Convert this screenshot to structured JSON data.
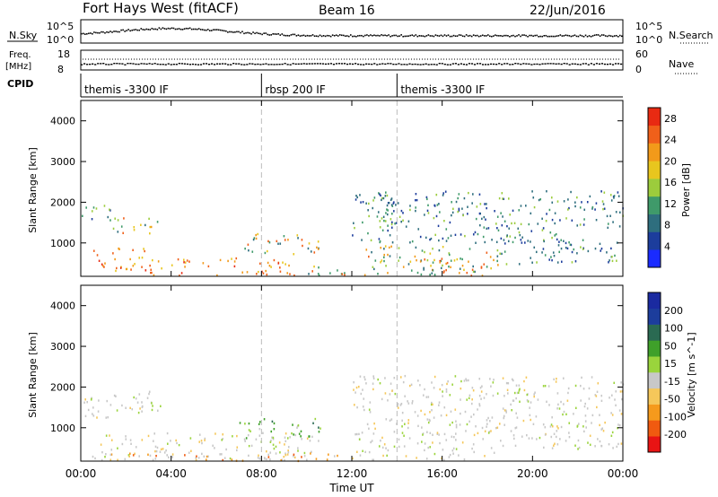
{
  "header": {
    "title": "Fort Hays West (fitACF)",
    "beam": "Beam 16",
    "date": "22/Jun/2016"
  },
  "sky_panel": {
    "left_label": "N.Sky",
    "right_label": "N.Search",
    "left_ticks": [
      "10^5",
      "10^0"
    ],
    "right_ticks": [
      "10^5",
      "10^0"
    ]
  },
  "freq_panel": {
    "left_label_line1": "Freq.",
    "left_label_line2": "[MHz]",
    "left_ticks": [
      "18",
      "8"
    ],
    "right_ticks": [
      "60",
      "0"
    ],
    "right_label": "Nave"
  },
  "cpid": {
    "label": "CPID",
    "segments": [
      {
        "start_hour": 0,
        "end_hour": 8,
        "text": "themis -3300 IF"
      },
      {
        "start_hour": 8,
        "end_hour": 14,
        "text": "rbsp 200 IF"
      },
      {
        "start_hour": 14,
        "end_hour": 24,
        "text": "themis -3300 IF"
      }
    ]
  },
  "colors": {
    "power_scale": [
      "#1a2bff",
      "#1c3d9c",
      "#2e6e7e",
      "#3f9a6a",
      "#9ccc3c",
      "#e8c61e",
      "#f29a1a",
      "#f0601a",
      "#e82a12"
    ],
    "velocity_scale": [
      "#e81414",
      "#f05a10",
      "#f59a1c",
      "#f5c75a",
      "#c8c8c8",
      "#9ad43c",
      "#3fa02a",
      "#2a6a52",
      "#1c3d9c",
      "#1a2aa0"
    ]
  },
  "chart_data": [
    {
      "type": "heatmap",
      "title": "",
      "quantity": "Power",
      "colorbar_label": "Power [dB]",
      "colorbar_ticks": [
        "4",
        "8",
        "12",
        "16",
        "20",
        "24",
        "28"
      ],
      "colorbar_range": [
        0,
        30
      ],
      "xlabel": "",
      "ylabel": "Slant Range [km]",
      "xlim": [
        0,
        24
      ],
      "ylim": [
        180,
        4500
      ],
      "ytick_labels": [
        "1000",
        "2000",
        "3000",
        "4000"
      ],
      "ytick_values": [
        1000,
        2000,
        3000,
        4000
      ],
      "regions": [
        {
          "t0": 0.0,
          "t1": 1.6,
          "r0": 1550,
          "r1": 1950,
          "level": "low"
        },
        {
          "t0": 1.2,
          "t1": 3.5,
          "r0": 1250,
          "r1": 1650,
          "level": "mid"
        },
        {
          "t0": 0.4,
          "t1": 3.0,
          "r0": 300,
          "r1": 900,
          "level": "high"
        },
        {
          "t0": 3.0,
          "t1": 9.5,
          "r0": 220,
          "r1": 650,
          "level": "high"
        },
        {
          "t0": 7.0,
          "t1": 10.6,
          "r0": 750,
          "r1": 1250,
          "level": "mid"
        },
        {
          "t0": 10.0,
          "t1": 18.5,
          "r0": 220,
          "r1": 450,
          "level": "mid"
        },
        {
          "t0": 12.5,
          "t1": 18.5,
          "r0": 400,
          "r1": 950,
          "level": "mid"
        },
        {
          "t0": 15.8,
          "t1": 18.2,
          "r0": 280,
          "r1": 650,
          "level": "high"
        },
        {
          "t0": 12.0,
          "t1": 14.0,
          "r0": 1000,
          "r1": 2300,
          "level": "low"
        },
        {
          "t0": 13.2,
          "t1": 24.0,
          "r0": 1400,
          "r1": 2300,
          "level": "low"
        },
        {
          "t0": 14.0,
          "t1": 21.5,
          "r0": 1000,
          "r1": 1400,
          "level": "low"
        },
        {
          "t0": 18.5,
          "t1": 24.0,
          "r0": 500,
          "r1": 1100,
          "level": "low"
        }
      ]
    },
    {
      "type": "heatmap",
      "title": "",
      "quantity": "Velocity",
      "colorbar_label": "Velocity [m s^-1]",
      "colorbar_ticks": [
        "-200",
        "-100",
        "-50",
        "-15",
        "15",
        "50",
        "100",
        "200"
      ],
      "xlabel": "Time UT",
      "ylabel": "Slant Range [km]",
      "xlim": [
        0,
        24
      ],
      "ylim": [
        180,
        4500
      ],
      "xtick_labels": [
        "00:00",
        "04:00",
        "08:00",
        "12:00",
        "16:00",
        "20:00",
        "00:00"
      ],
      "xtick_values": [
        0,
        4,
        8,
        12,
        16,
        20,
        24
      ],
      "ytick_labels": [
        "1000",
        "2000",
        "3000",
        "4000"
      ],
      "ytick_values": [
        1000,
        2000,
        3000,
        4000
      ],
      "regions": [
        {
          "t0": 0.0,
          "t1": 3.5,
          "r0": 1250,
          "r1": 1950,
          "level": "gray"
        },
        {
          "t0": 0.4,
          "t1": 10.5,
          "r0": 220,
          "r1": 900,
          "level": "gray"
        },
        {
          "t0": 1.0,
          "t1": 12.0,
          "r0": 200,
          "r1": 400,
          "level": "orange"
        },
        {
          "t0": 7.0,
          "t1": 10.6,
          "r0": 750,
          "r1": 1250,
          "level": "green"
        },
        {
          "t0": 12.0,
          "t1": 18.5,
          "r0": 220,
          "r1": 950,
          "level": "gray"
        },
        {
          "t0": 12.0,
          "t1": 24.0,
          "r0": 1000,
          "r1": 2300,
          "level": "gray"
        },
        {
          "t0": 18.5,
          "t1": 24.0,
          "r0": 500,
          "r1": 1100,
          "level": "gray"
        }
      ]
    }
  ]
}
